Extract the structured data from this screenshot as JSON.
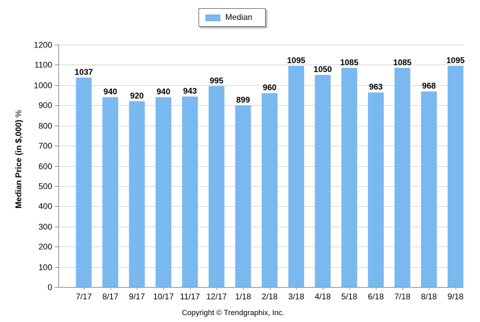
{
  "legend": {
    "label": "Median",
    "swatch_color": "#7ab8f0"
  },
  "copyright": "Copyright © Trendgraphix, Inc.",
  "chart_data": {
    "type": "bar",
    "title": "",
    "ylabel": "Median Price (in $,000)",
    "ylabel_suffix": "%",
    "xlabel": "",
    "ylim": [
      0,
      1200
    ],
    "yticks": [
      0,
      100,
      200,
      300,
      400,
      500,
      600,
      700,
      800,
      900,
      1000,
      1100,
      1200
    ],
    "grid": true,
    "legend_position": "top-center",
    "categories": [
      "7/17",
      "8/17",
      "9/17",
      "10/17",
      "11/17",
      "12/17",
      "1/18",
      "2/18",
      "3/18",
      "4/18",
      "5/18",
      "6/18",
      "7/18",
      "8/18",
      "9/18"
    ],
    "series": [
      {
        "name": "Median",
        "color": "#7ab8f0",
        "values": [
          1037,
          940,
          920,
          940,
          943,
          995,
          899,
          960,
          1095,
          1050,
          1085,
          963,
          1085,
          968,
          1095
        ]
      }
    ]
  }
}
